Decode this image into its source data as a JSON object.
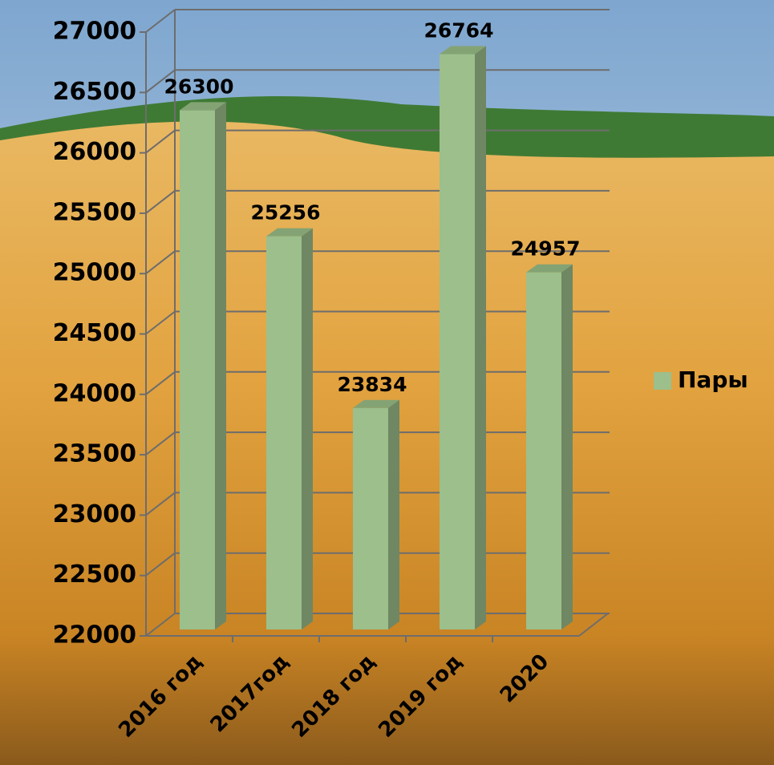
{
  "chart_data": {
    "type": "bar3d",
    "categories": [
      "2016 год",
      "2017год",
      "2018 год",
      "2019 год",
      "2020"
    ],
    "series": [
      {
        "name": "Пары",
        "color": "#9cbf8c",
        "values": [
          26300,
          25256,
          23834,
          26764,
          24957
        ]
      }
    ],
    "ylim": [
      22000,
      27000
    ],
    "yticks": [
      22000,
      22500,
      23000,
      23500,
      24000,
      24500,
      25000,
      25500,
      26000,
      26500,
      27000
    ],
    "grid": true,
    "legend": "right"
  }
}
